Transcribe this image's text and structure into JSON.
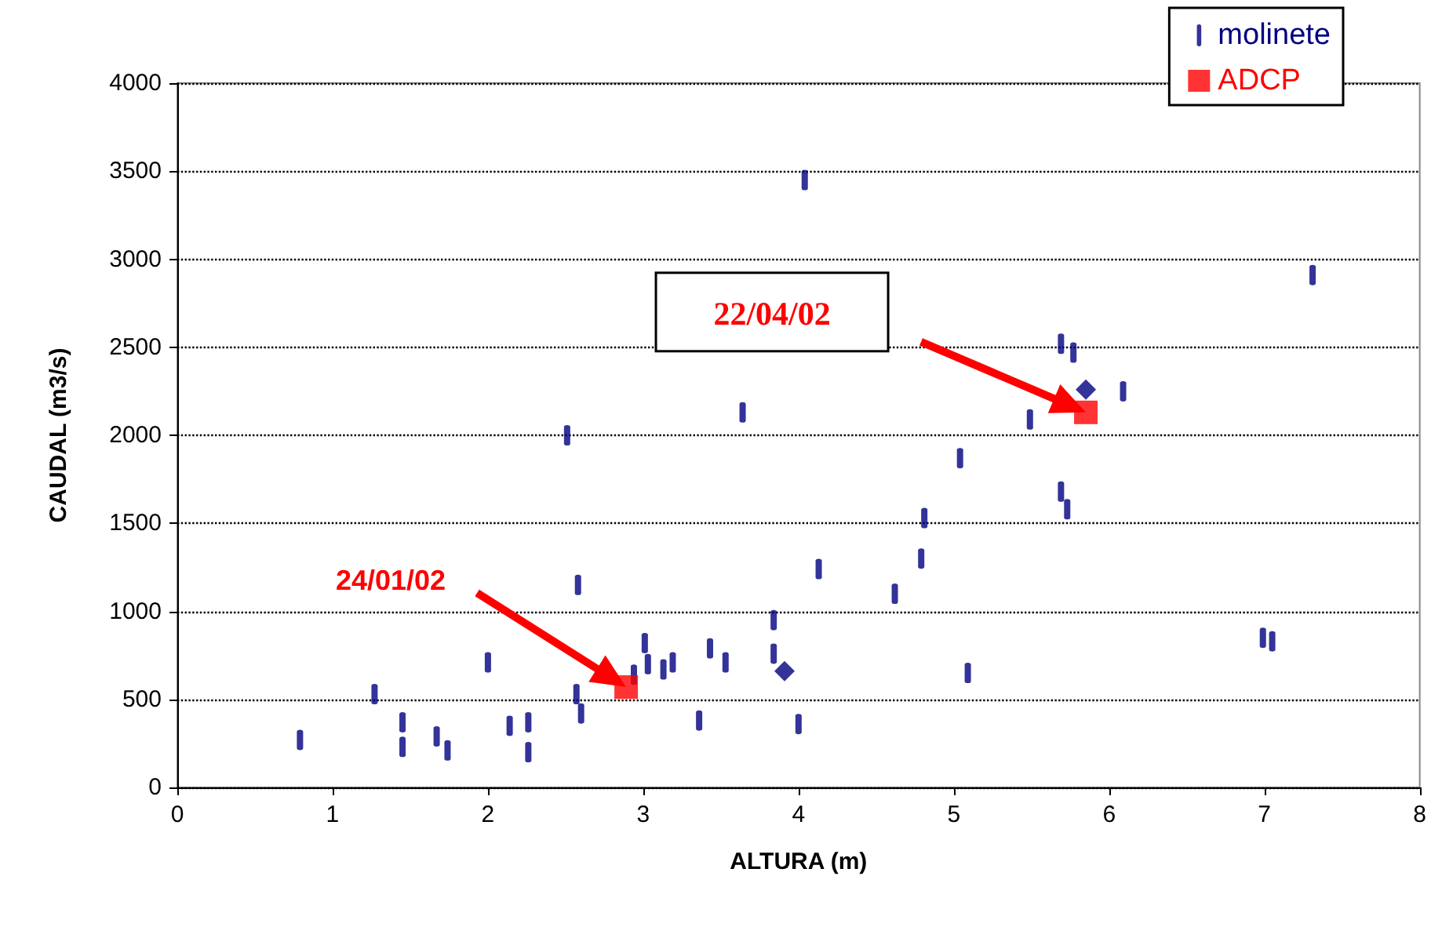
{
  "chart_data": {
    "type": "scatter",
    "xlabel": "ALTURA (m)",
    "ylabel": "CAUDAL (m3/s)",
    "xlim": [
      0,
      8
    ],
    "xticks": [
      0,
      1,
      2,
      3,
      4,
      5,
      6,
      7,
      8
    ],
    "ylim": [
      0,
      4000
    ],
    "yticks": [
      0,
      500,
      1000,
      1500,
      2000,
      2500,
      3000,
      3500,
      4000
    ],
    "grid": "y",
    "legend": "top right",
    "series": [
      {
        "name": "molinete",
        "color": "#000080",
        "x": [
          0.79,
          1.27,
          1.45,
          1.45,
          1.67,
          1.74,
          2.0,
          2.14,
          2.26,
          2.26,
          2.51,
          2.57,
          2.58,
          2.6,
          2.94,
          3.01,
          3.03,
          3.13,
          3.19,
          3.36,
          3.43,
          3.53,
          3.64,
          3.84,
          3.84,
          4.0,
          4.04,
          4.13,
          4.62,
          4.79,
          4.81,
          5.04,
          5.09,
          5.49,
          5.69,
          5.69,
          5.73,
          5.77,
          6.09,
          6.99,
          7.05,
          7.31
        ],
        "values": [
          270,
          530,
          370,
          230,
          290,
          210,
          710,
          350,
          370,
          200,
          2000,
          530,
          1150,
          420,
          640,
          820,
          700,
          670,
          710,
          380,
          790,
          710,
          2130,
          950,
          760,
          360,
          3450,
          1240,
          1100,
          1300,
          1530,
          1870,
          650,
          2090,
          2520,
          1680,
          1580,
          2470,
          2250,
          850,
          830,
          2910
        ]
      },
      {
        "name": "ADCP",
        "color": "#ff0000",
        "marker": "square",
        "x": [
          2.89,
          5.85
        ],
        "values": [
          570,
          2130
        ]
      },
      {
        "color": "#000080",
        "marker": "diamond",
        "x": [
          3.91,
          5.85
        ],
        "values": [
          660,
          2260
        ]
      }
    ],
    "annotations": [
      "24/01/02",
      "22/04/02"
    ]
  }
}
